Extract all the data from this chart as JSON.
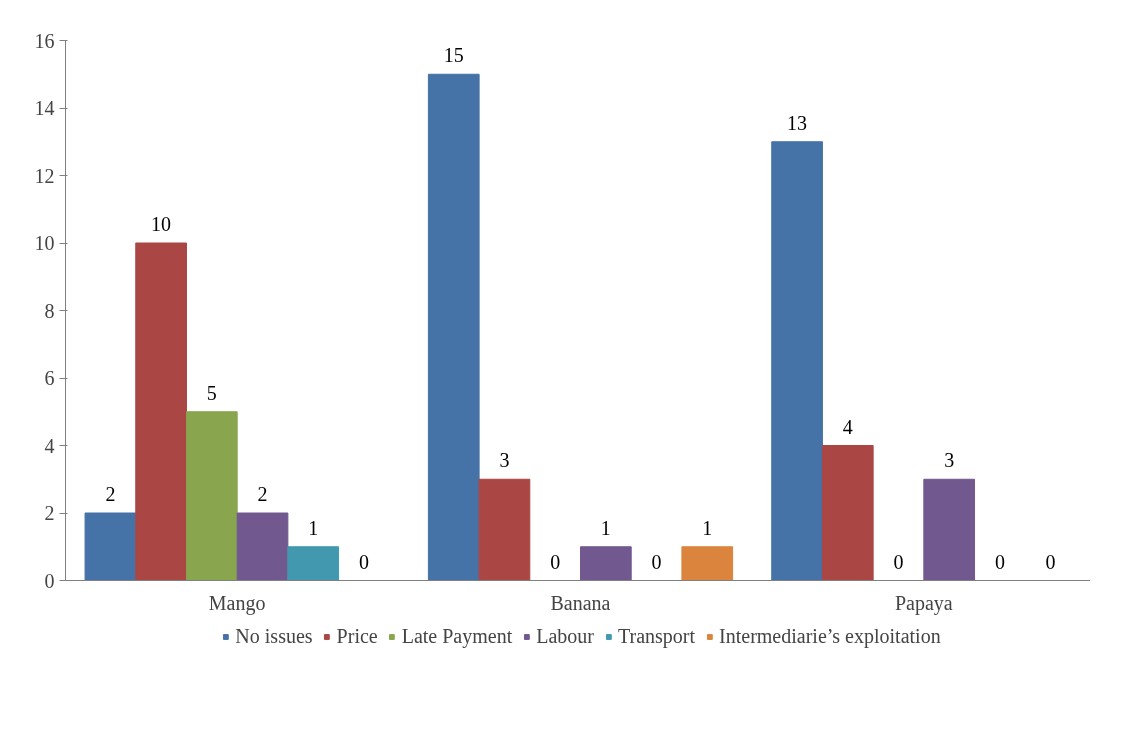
{
  "chart_data": {
    "type": "bar",
    "categories": [
      "Mango",
      "Banana",
      "Papaya"
    ],
    "series": [
      {
        "name": "No issues",
        "color": "#4572a7",
        "values": [
          2,
          15,
          13
        ]
      },
      {
        "name": "Price",
        "color": "#aa4643",
        "values": [
          10,
          3,
          4
        ]
      },
      {
        "name": "Late Payment",
        "color": "#89a54e",
        "values": [
          5,
          0,
          0
        ]
      },
      {
        "name": "Labour",
        "color": "#71588f",
        "values": [
          2,
          1,
          3
        ]
      },
      {
        "name": "Transport",
        "color": "#4198af",
        "values": [
          1,
          0,
          0
        ]
      },
      {
        "name": "Intermediarie’s exploitation",
        "color": "#db843d",
        "values": [
          0,
          1,
          0
        ]
      }
    ],
    "ylim": [
      0,
      16
    ],
    "yticks": [
      0,
      2,
      4,
      6,
      8,
      10,
      12,
      14,
      16
    ],
    "grid": false,
    "legend": "bottom",
    "data_labels": true
  }
}
